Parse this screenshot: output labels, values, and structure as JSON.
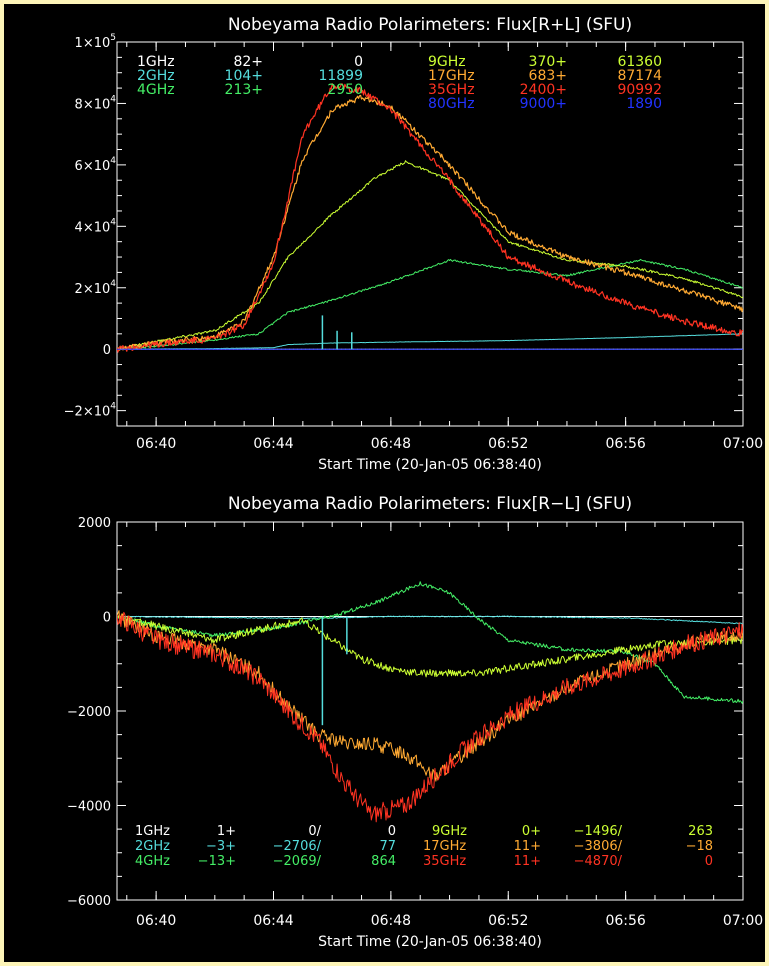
{
  "chart_data": [
    {
      "type": "line",
      "title": "Nobeyama Radio Polarimeters: Flux[R+L] (SFU)",
      "title_parts": [
        "Nobeyama Radio Polarimeters: Flux",
        "R+L",
        " (SFU)"
      ],
      "xlabel": "Start Time (20-Jan-05 06:38:40)",
      "ylabel": "",
      "xlim": [
        "06:38:40",
        "07:00:00"
      ],
      "xticks": [
        "06:40",
        "06:44",
        "06:48",
        "06:52",
        "06:56",
        "07:00"
      ],
      "ylim": [
        -25000,
        100000
      ],
      "yticks": [
        {
          "v": 100000,
          "label": "1×10",
          "exp": "5"
        },
        {
          "v": 80000,
          "label": "8×10",
          "exp": "4"
        },
        {
          "v": 60000,
          "label": "6×10",
          "exp": "4"
        },
        {
          "v": 40000,
          "label": "4×10",
          "exp": "4"
        },
        {
          "v": 20000,
          "label": "2×10",
          "exp": "4"
        },
        {
          "v": 0,
          "label": "0",
          "exp": ""
        },
        {
          "v": -20000,
          "label": "−2×10",
          "exp": "4"
        }
      ],
      "series": [
        {
          "name": "1GHz",
          "color": "#ffffff",
          "noise": 0,
          "x": [
            "06:38:40",
            "07:00:00"
          ],
          "y": [
            0,
            0
          ]
        },
        {
          "name": "2GHz",
          "color": "#55dddd",
          "noise": 40,
          "x": [
            "06:38:40",
            "06:42:00",
            "06:44:00",
            "06:44:30",
            "06:46:00",
            "06:48:00",
            "06:52:00",
            "06:56:00",
            "07:00:00"
          ],
          "y": [
            0,
            200,
            500,
            1500,
            2000,
            2300,
            2800,
            3800,
            5000
          ]
        },
        {
          "name": "4GHz",
          "color": "#44ee66",
          "noise": 300,
          "x": [
            "06:38:40",
            "06:40:00",
            "06:42:00",
            "06:43:30",
            "06:44:30",
            "06:46:00",
            "06:48:00",
            "06:50:00",
            "06:52:00",
            "06:54:00",
            "06:56:30",
            "06:58:00",
            "07:00:00"
          ],
          "y": [
            0,
            1000,
            3000,
            5000,
            12000,
            16000,
            22000,
            29000,
            26000,
            24000,
            29000,
            26000,
            20000
          ]
        },
        {
          "name": "9GHz",
          "color": "#ccff33",
          "noise": 400,
          "x": [
            "06:38:40",
            "06:40:00",
            "06:42:00",
            "06:43:30",
            "06:44:30",
            "06:46:00",
            "06:47:30",
            "06:48:30",
            "06:50:00",
            "06:52:00",
            "06:54:00",
            "06:56:00",
            "06:58:00",
            "07:00:00"
          ],
          "y": [
            0,
            2500,
            6000,
            15000,
            30000,
            44000,
            56000,
            61000,
            55000,
            35000,
            29000,
            27000,
            23000,
            17000
          ]
        },
        {
          "name": "17GHz",
          "color": "#ffaa33",
          "noise": 900,
          "x": [
            "06:38:40",
            "06:40:00",
            "06:42:00",
            "06:43:00",
            "06:44:00",
            "06:45:00",
            "06:46:00",
            "06:47:00",
            "06:48:00",
            "06:50:00",
            "06:52:00",
            "06:54:00",
            "06:56:00",
            "06:58:00",
            "07:00:00"
          ],
          "y": [
            0,
            2000,
            4000,
            9000,
            30000,
            62000,
            78000,
            82000,
            79000,
            60000,
            38000,
            30000,
            25000,
            19000,
            13000
          ]
        },
        {
          "name": "35GHz",
          "color": "#ff3322",
          "noise": 1100,
          "x": [
            "06:38:40",
            "06:40:00",
            "06:42:00",
            "06:43:00",
            "06:44:00",
            "06:45:00",
            "06:46:00",
            "06:47:00",
            "06:48:00",
            "06:50:00",
            "06:52:00",
            "06:54:00",
            "06:56:00",
            "06:58:00",
            "07:00:00"
          ],
          "y": [
            0,
            1500,
            3500,
            8000,
            28000,
            70000,
            86000,
            84000,
            78000,
            55000,
            30000,
            22000,
            15000,
            9000,
            5000
          ]
        },
        {
          "name": "80GHz",
          "color": "#2233ff",
          "noise": 0,
          "x": [
            "06:38:40",
            "07:00:00"
          ],
          "y": [
            0,
            0
          ]
        }
      ],
      "spikes": [
        {
          "x": "06:45:40",
          "y": 11000,
          "color": "#55dddd"
        },
        {
          "x": "06:46:10",
          "y": 6000,
          "color": "#55dddd"
        },
        {
          "x": "06:46:40",
          "y": 5500,
          "color": "#55dddd"
        }
      ],
      "legend_rows": [
        [
          {
            "t": "1GHz",
            "c": "#ffffff",
            "x": 137,
            "a": "start"
          },
          {
            "t": "82+",
            "c": "#ffffff",
            "x": 263,
            "a": "end"
          },
          {
            "t": "0",
            "c": "#ffffff",
            "x": 363,
            "a": "end"
          },
          {
            "t": "9GHz",
            "c": "#ccff33",
            "x": 428,
            "a": "start"
          },
          {
            "t": "370+",
            "c": "#ccff33",
            "x": 567,
            "a": "end"
          },
          {
            "t": "61360",
            "c": "#ccff33",
            "x": 662,
            "a": "end"
          }
        ],
        [
          {
            "t": "2GHz",
            "c": "#55dddd",
            "x": 137,
            "a": "start"
          },
          {
            "t": "104+",
            "c": "#55dddd",
            "x": 263,
            "a": "end"
          },
          {
            "t": "11899",
            "c": "#55dddd",
            "x": 363,
            "a": "end"
          },
          {
            "t": "17GHz",
            "c": "#ffaa33",
            "x": 428,
            "a": "start"
          },
          {
            "t": "683+",
            "c": "#ffaa33",
            "x": 567,
            "a": "end"
          },
          {
            "t": "87174",
            "c": "#ffaa33",
            "x": 662,
            "a": "end"
          }
        ],
        [
          {
            "t": "4GHz",
            "c": "#44ee66",
            "x": 137,
            "a": "start"
          },
          {
            "t": "213+",
            "c": "#44ee66",
            "x": 263,
            "a": "end"
          },
          {
            "t": "2950",
            "c": "#44ee66",
            "x": 363,
            "a": "end"
          },
          {
            "t": "35GHz",
            "c": "#ff3322",
            "x": 428,
            "a": "start"
          },
          {
            "t": "2400+",
            "c": "#ff3322",
            "x": 567,
            "a": "end"
          },
          {
            "t": "90992",
            "c": "#ff3322",
            "x": 662,
            "a": "end"
          }
        ],
        [
          {
            "t": "80GHz",
            "c": "#2233ff",
            "x": 428,
            "a": "start"
          },
          {
            "t": "9000+",
            "c": "#2233ff",
            "x": 567,
            "a": "end"
          },
          {
            "t": "1890",
            "c": "#2233ff",
            "x": 662,
            "a": "end"
          }
        ]
      ]
    },
    {
      "type": "line",
      "title": "Nobeyama Radio Polarimeters: Flux[R-L] (SFU)",
      "title_parts": [
        "Nobeyama Radio Polarimeters: Flux",
        "R−L",
        " (SFU)"
      ],
      "xlabel": "Start Time (20-Jan-05 06:38:40)",
      "ylabel": "",
      "xlim": [
        "06:38:40",
        "07:00:00"
      ],
      "xticks": [
        "06:40",
        "06:44",
        "06:48",
        "06:52",
        "06:56",
        "07:00"
      ],
      "ylim": [
        -6000,
        2000
      ],
      "yticks": [
        {
          "v": 2000,
          "label": "2000",
          "exp": ""
        },
        {
          "v": 0,
          "label": "0",
          "exp": ""
        },
        {
          "v": -2000,
          "label": "−2000",
          "exp": ""
        },
        {
          "v": -4000,
          "label": "−4000",
          "exp": ""
        },
        {
          "v": -6000,
          "label": "−6000",
          "exp": ""
        }
      ],
      "series": [
        {
          "name": "1GHz",
          "color": "#ffffff",
          "noise": 0,
          "x": [
            "06:38:40",
            "07:00:00"
          ],
          "y": [
            0,
            0
          ]
        },
        {
          "name": "2GHz",
          "color": "#55dddd",
          "noise": 10,
          "x": [
            "06:38:40",
            "06:42:00",
            "06:45:00",
            "06:48:00",
            "06:52:00",
            "06:56:00",
            "07:00:00"
          ],
          "y": [
            0,
            -20,
            -40,
            0,
            0,
            -30,
            -150
          ]
        },
        {
          "name": "4GHz",
          "color": "#44ee66",
          "noise": 40,
          "x": [
            "06:38:40",
            "06:40:00",
            "06:42:00",
            "06:44:00",
            "06:46:00",
            "06:47:30",
            "06:49:00",
            "06:50:00",
            "06:51:00",
            "06:52:00",
            "06:54:00",
            "06:56:00",
            "06:57:00",
            "06:58:00",
            "07:00:00"
          ],
          "y": [
            0,
            -200,
            -400,
            -250,
            0,
            300,
            700,
            500,
            -50,
            -500,
            -700,
            -750,
            -1000,
            -1700,
            -1800
          ]
        },
        {
          "name": "9GHz",
          "color": "#ccff33",
          "noise": 80,
          "x": [
            "06:38:40",
            "06:40:00",
            "06:42:00",
            "06:44:00",
            "06:45:00",
            "06:46:00",
            "06:47:00",
            "06:48:00",
            "06:49:00",
            "06:51:00",
            "06:53:00",
            "06:55:00",
            "06:57:00",
            "07:00:00"
          ],
          "y": [
            0,
            -200,
            -500,
            -200,
            -100,
            -500,
            -900,
            -1100,
            -1200,
            -1200,
            -1000,
            -800,
            -600,
            -500
          ]
        },
        {
          "name": "17GHz",
          "color": "#ffaa33",
          "noise": 150,
          "x": [
            "06:38:40",
            "06:40:00",
            "06:42:00",
            "06:43:30",
            "06:44:30",
            "06:45:30",
            "06:46:30",
            "06:47:30",
            "06:48:30",
            "06:49:30",
            "06:50:30",
            "06:52:00",
            "06:54:00",
            "06:56:00",
            "06:58:00",
            "07:00:00"
          ],
          "y": [
            0,
            -400,
            -700,
            -1200,
            -1900,
            -2500,
            -2700,
            -2700,
            -2900,
            -3400,
            -2900,
            -2200,
            -1500,
            -1000,
            -600,
            -400
          ]
        },
        {
          "name": "35GHz",
          "color": "#ff3322",
          "noise": 200,
          "x": [
            "06:38:40",
            "06:40:00",
            "06:42:00",
            "06:43:30",
            "06:44:30",
            "06:45:30",
            "06:46:30",
            "06:47:20",
            "06:48:30",
            "06:49:30",
            "06:50:30",
            "06:52:00",
            "06:54:00",
            "06:56:00",
            "06:58:00",
            "07:00:00"
          ],
          "y": [
            0,
            -500,
            -800,
            -1300,
            -2000,
            -2600,
            -3600,
            -4200,
            -4000,
            -3400,
            -2800,
            -2100,
            -1500,
            -1100,
            -600,
            -300
          ]
        }
      ],
      "spikes": [
        {
          "x": "06:45:40",
          "y": -2300,
          "color": "#55dddd"
        },
        {
          "x": "06:46:30",
          "y": -800,
          "color": "#55dddd"
        }
      ],
      "legend_rows": [
        [
          {
            "t": "1GHz",
            "c": "#ffffff",
            "x": 135,
            "a": "start"
          },
          {
            "t": "1+",
            "c": "#ffffff",
            "x": 236,
            "a": "end"
          },
          {
            "t": "0/",
            "c": "#ffffff",
            "x": 321,
            "a": "end"
          },
          {
            "t": "0",
            "c": "#ffffff",
            "x": 396,
            "a": "end"
          },
          {
            "t": "9GHz",
            "c": "#ccff33",
            "x": 432,
            "a": "start"
          },
          {
            "t": "0+",
            "c": "#ccff33",
            "x": 541,
            "a": "end"
          },
          {
            "t": "−1496/",
            "c": "#ccff33",
            "x": 622,
            "a": "end"
          },
          {
            "t": "263",
            "c": "#ccff33",
            "x": 713,
            "a": "end"
          }
        ],
        [
          {
            "t": "2GHz",
            "c": "#55dddd",
            "x": 135,
            "a": "start"
          },
          {
            "t": "−3+",
            "c": "#55dddd",
            "x": 236,
            "a": "end"
          },
          {
            "t": "−2706/",
            "c": "#55dddd",
            "x": 321,
            "a": "end"
          },
          {
            "t": "77",
            "c": "#55dddd",
            "x": 396,
            "a": "end"
          },
          {
            "t": "17GHz",
            "c": "#ffaa33",
            "x": 423,
            "a": "start"
          },
          {
            "t": "11+",
            "c": "#ffaa33",
            "x": 541,
            "a": "end"
          },
          {
            "t": "−3806/",
            "c": "#ffaa33",
            "x": 622,
            "a": "end"
          },
          {
            "t": "−18",
            "c": "#ffaa33",
            "x": 713,
            "a": "end"
          }
        ],
        [
          {
            "t": "4GHz",
            "c": "#44ee66",
            "x": 135,
            "a": "start"
          },
          {
            "t": "−13+",
            "c": "#44ee66",
            "x": 236,
            "a": "end"
          },
          {
            "t": "−2069/",
            "c": "#44ee66",
            "x": 321,
            "a": "end"
          },
          {
            "t": "864",
            "c": "#44ee66",
            "x": 396,
            "a": "end"
          },
          {
            "t": "35GHz",
            "c": "#ff3322",
            "x": 423,
            "a": "start"
          },
          {
            "t": "11+",
            "c": "#ff3322",
            "x": 541,
            "a": "end"
          },
          {
            "t": "−4870/",
            "c": "#ff3322",
            "x": 622,
            "a": "end"
          },
          {
            "t": "0",
            "c": "#ff3322",
            "x": 713,
            "a": "end"
          }
        ]
      ]
    }
  ]
}
